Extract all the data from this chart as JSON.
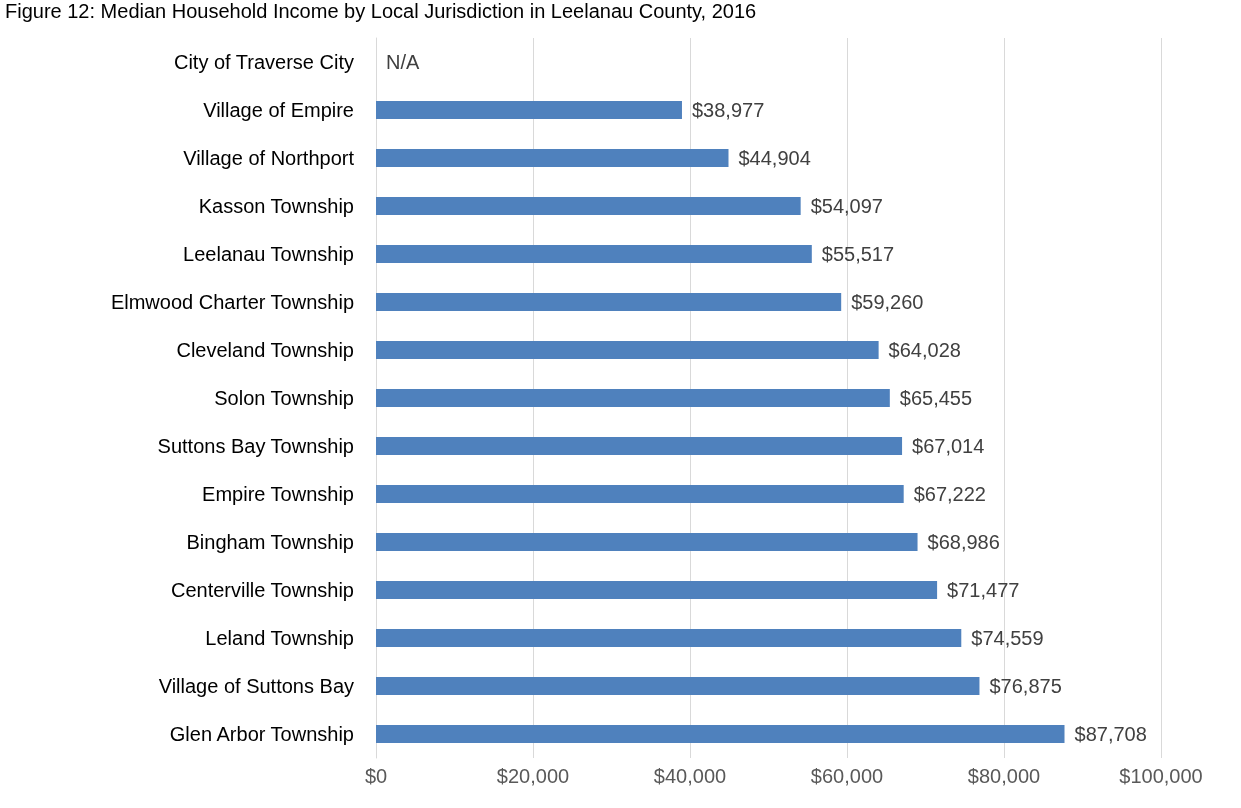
{
  "chart_data": {
    "type": "bar",
    "orientation": "horizontal",
    "title": "Figure 12: Median Household Income by Local Jurisdiction in Leelanau County, 2016",
    "categories": [
      "City of Traverse City",
      "Village of Empire",
      "Village of Northport",
      "Kasson Township",
      "Leelanau Township",
      "Elmwood Charter Township",
      "Cleveland Township",
      "Solon Township",
      "Suttons Bay Township",
      "Empire Township",
      "Bingham Township",
      "Centerville Township",
      "Leland Township",
      "Village of Suttons Bay",
      "Glen Arbor Township"
    ],
    "values": [
      null,
      38977,
      44904,
      54097,
      55517,
      59260,
      64028,
      65455,
      67014,
      67222,
      68986,
      71477,
      74559,
      76875,
      87708
    ],
    "value_labels": [
      "N/A",
      "$38,977",
      "$44,904",
      "$54,097",
      "$55,517",
      "$59,260",
      "$64,028",
      "$65,455",
      "$67,014",
      "$67,222",
      "$68,986",
      "$71,477",
      "$74,559",
      "$76,875",
      "$87,708"
    ],
    "color": "#4f81bd",
    "xlim": [
      0,
      100000
    ],
    "xticks": [
      {
        "value": 0,
        "label": "$0"
      },
      {
        "value": 20000,
        "label": "$20,000"
      },
      {
        "value": 40000,
        "label": "$40,000"
      },
      {
        "value": 60000,
        "label": "$60,000"
      },
      {
        "value": 80000,
        "label": "$80,000"
      },
      {
        "value": 100000,
        "label": "$100,000"
      }
    ],
    "grid": "x"
  }
}
